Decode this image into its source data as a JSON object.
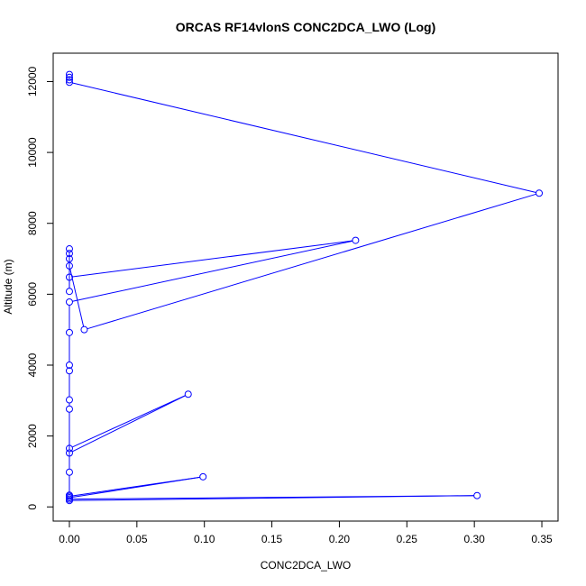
{
  "chart_data": {
    "type": "line",
    "title": "ORCAS RF14vlonS CONC2DCA_LWO (Log)",
    "xlabel": "CONC2DCA_LWO",
    "ylabel": "Altitude (m)",
    "xlim": [
      -0.012,
      0.362
    ],
    "ylim": [
      -400,
      12800
    ],
    "xticks": [
      "0.00",
      "0.05",
      "0.10",
      "0.15",
      "0.20",
      "0.25",
      "0.30",
      "0.35"
    ],
    "yticks": [
      "0",
      "2000",
      "4000",
      "6000",
      "8000",
      "10000",
      "12000"
    ],
    "markers": "open-circle",
    "series_color": "#0000ff",
    "series": [
      {
        "x": [
          0,
          0,
          0,
          0,
          0.348,
          0.011,
          0,
          0,
          0,
          0,
          0,
          0,
          0.212,
          0,
          0,
          0,
          0,
          0,
          0,
          0,
          0.088,
          0,
          0,
          0,
          0,
          0.099,
          0,
          0,
          0.302,
          0
        ],
        "y": [
          12200,
          12120,
          12050,
          11980,
          8850,
          5000,
          6800,
          7000,
          7150,
          7280,
          6080,
          6480,
          7520,
          5780,
          4920,
          4000,
          3840,
          3020,
          2760,
          1520,
          3180,
          1650,
          980,
          330,
          260,
          850,
          300,
          180,
          320,
          220
        ]
      }
    ]
  }
}
